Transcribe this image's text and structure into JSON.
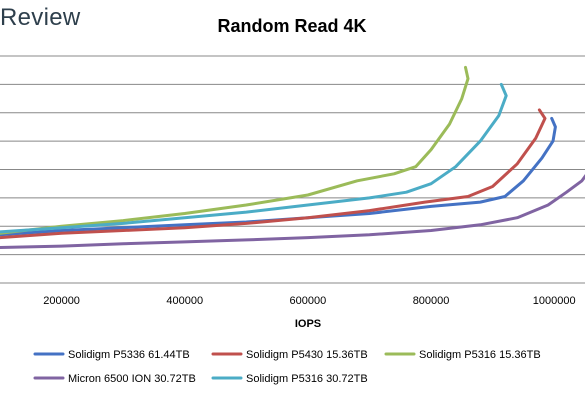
{
  "brand": "Review",
  "chart_data": {
    "type": "line",
    "title": "Random Read 4K",
    "xlabel": "IOPS",
    "ylabel": "",
    "xlim": [
      100000,
      1050000
    ],
    "ylim": [
      0,
      8
    ],
    "x_ticks": [
      200000,
      400000,
      600000,
      800000,
      1000000
    ],
    "x_tick_labels": [
      "200000",
      "400000",
      "600000",
      "800000",
      "1000000"
    ],
    "grid": "horizontal",
    "legend": "bottom",
    "series": [
      {
        "name": "Solidigm P5336 61.44TB",
        "color": "#4472c4",
        "points": [
          [
            100000,
            1.7
          ],
          [
            200000,
            1.85
          ],
          [
            300000,
            1.95
          ],
          [
            400000,
            2.05
          ],
          [
            500000,
            2.15
          ],
          [
            600000,
            2.3
          ],
          [
            700000,
            2.45
          ],
          [
            800000,
            2.7
          ],
          [
            880000,
            2.85
          ],
          [
            920000,
            3.05
          ],
          [
            950000,
            3.6
          ],
          [
            980000,
            4.4
          ],
          [
            998000,
            5.0
          ],
          [
            1002000,
            5.5
          ],
          [
            996000,
            5.8
          ]
        ]
      },
      {
        "name": "Solidigm P5430 15.36TB",
        "color": "#c0504d",
        "points": [
          [
            100000,
            1.6
          ],
          [
            200000,
            1.75
          ],
          [
            300000,
            1.85
          ],
          [
            400000,
            1.95
          ],
          [
            500000,
            2.1
          ],
          [
            600000,
            2.3
          ],
          [
            700000,
            2.55
          ],
          [
            790000,
            2.85
          ],
          [
            860000,
            3.05
          ],
          [
            900000,
            3.4
          ],
          [
            940000,
            4.2
          ],
          [
            970000,
            5.1
          ],
          [
            985000,
            5.8
          ],
          [
            976000,
            6.1
          ]
        ]
      },
      {
        "name": "Solidigm P5316 15.36TB",
        "color": "#9bbb59",
        "points": [
          [
            100000,
            1.75
          ],
          [
            200000,
            2.0
          ],
          [
            300000,
            2.2
          ],
          [
            400000,
            2.45
          ],
          [
            500000,
            2.75
          ],
          [
            600000,
            3.1
          ],
          [
            680000,
            3.6
          ],
          [
            740000,
            3.85
          ],
          [
            775000,
            4.1
          ],
          [
            800000,
            4.7
          ],
          [
            830000,
            5.6
          ],
          [
            850000,
            6.5
          ],
          [
            860000,
            7.2
          ],
          [
            856000,
            7.6
          ]
        ]
      },
      {
        "name": "Micron 6500 ION 30.72TB",
        "color": "#8064a2",
        "points": [
          [
            100000,
            1.25
          ],
          [
            200000,
            1.3
          ],
          [
            300000,
            1.38
          ],
          [
            400000,
            1.45
          ],
          [
            500000,
            1.52
          ],
          [
            600000,
            1.6
          ],
          [
            700000,
            1.7
          ],
          [
            800000,
            1.85
          ],
          [
            880000,
            2.05
          ],
          [
            940000,
            2.3
          ],
          [
            990000,
            2.75
          ],
          [
            1020000,
            3.2
          ],
          [
            1045000,
            3.6
          ],
          [
            1055000,
            3.9
          ]
        ]
      },
      {
        "name": "Solidigm P5316 30.72TB",
        "color": "#4bacc6",
        "points": [
          [
            100000,
            1.8
          ],
          [
            200000,
            1.95
          ],
          [
            300000,
            2.1
          ],
          [
            400000,
            2.3
          ],
          [
            500000,
            2.5
          ],
          [
            600000,
            2.75
          ],
          [
            700000,
            3.0
          ],
          [
            760000,
            3.2
          ],
          [
            800000,
            3.5
          ],
          [
            840000,
            4.1
          ],
          [
            880000,
            5.0
          ],
          [
            910000,
            5.9
          ],
          [
            922000,
            6.6
          ],
          [
            914000,
            7.0
          ]
        ]
      }
    ]
  }
}
